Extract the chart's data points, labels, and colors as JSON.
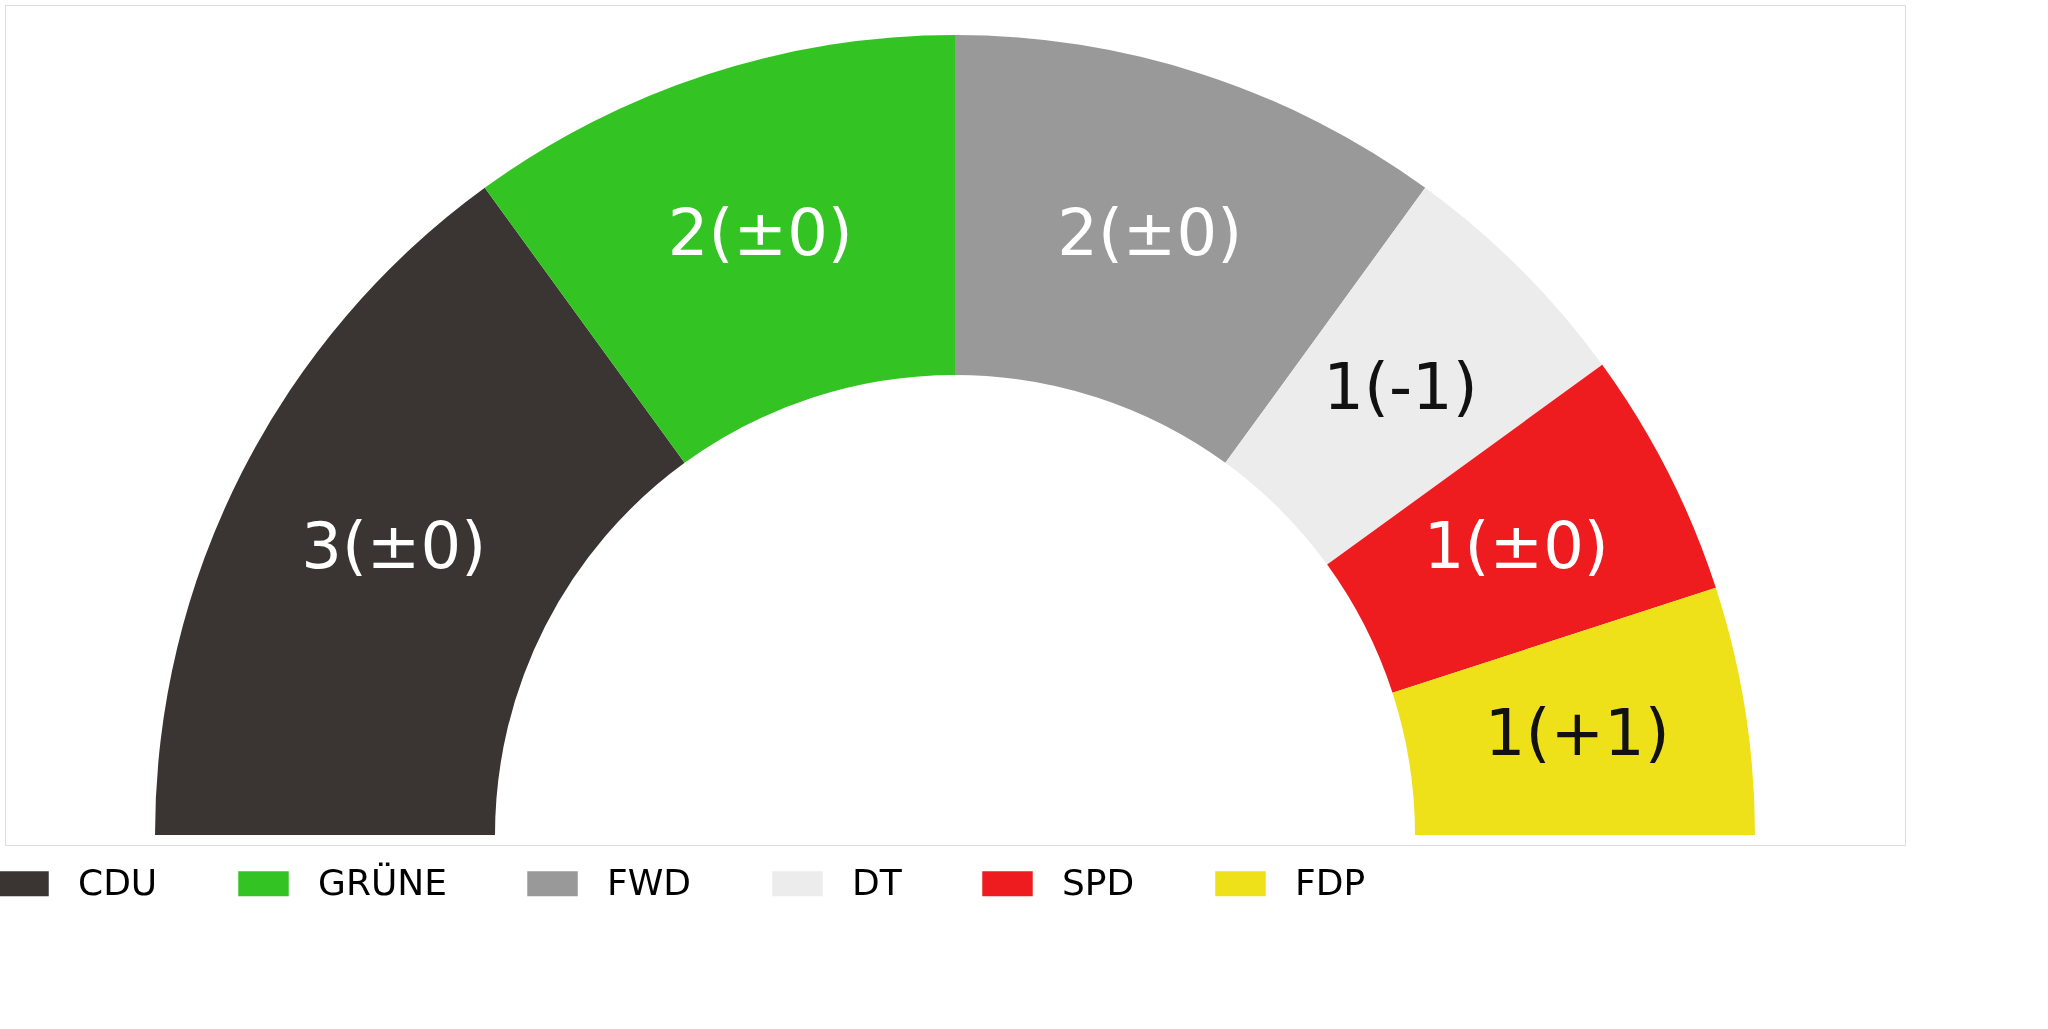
{
  "chart_data": {
    "type": "donut",
    "categories": [
      "CDU",
      "GRÜNE",
      "FWD",
      "DT",
      "SPD",
      "FDP"
    ],
    "values": [
      3,
      2,
      2,
      1,
      1,
      1
    ],
    "colors": [
      "#3a3432",
      "#33c424",
      "#999999",
      "#ececec",
      "#ee1c1f",
      "#eee11a"
    ],
    "value_labels": [
      "3(±0)",
      "2(±0)",
      "2(±0)",
      "1(-1)",
      "1(±0)",
      "1(+1)"
    ],
    "legend": "bottom"
  }
}
